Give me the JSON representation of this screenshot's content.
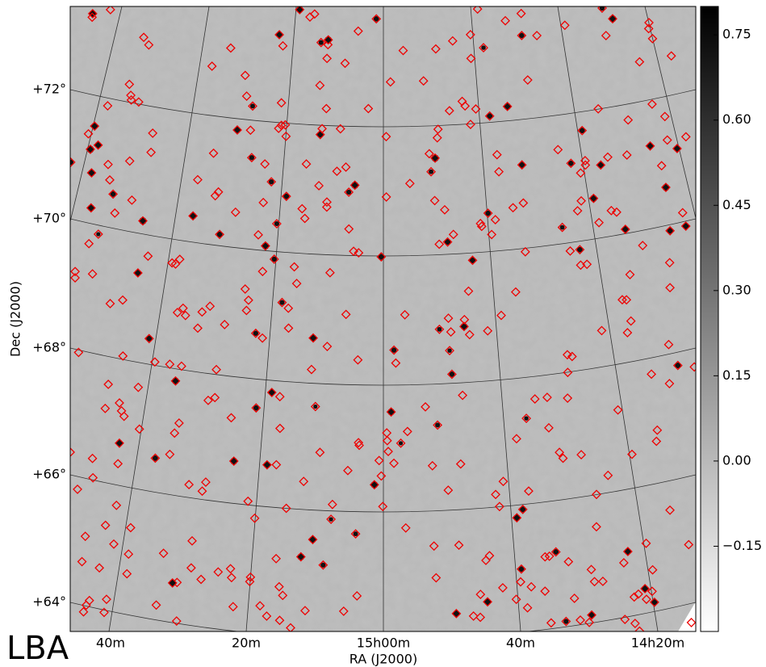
{
  "chart_data": {
    "type": "image",
    "xlabel": "RA (J2000)",
    "ylabel": "Dec (J2000)",
    "xtick_labels": [
      "40m",
      "20m",
      "15h00m",
      "40m",
      "14h20m"
    ],
    "ytick_labels": [
      "+72°",
      "+70°",
      "+68°",
      "+66°",
      "+64°"
    ],
    "annotation": "LBA",
    "colorbar": {
      "clim": [
        -0.3,
        0.8
      ],
      "ticks": [
        {
          "value": 0.75,
          "label": "0.75"
        },
        {
          "value": 0.6,
          "label": "0.60"
        },
        {
          "value": 0.45,
          "label": "0.45"
        },
        {
          "value": 0.3,
          "label": "0.30"
        },
        {
          "value": 0.15,
          "label": "0.15"
        },
        {
          "value": 0,
          "label": "0.00"
        },
        {
          "value": -0.15,
          "label": "−0.15"
        }
      ]
    }
  }
}
